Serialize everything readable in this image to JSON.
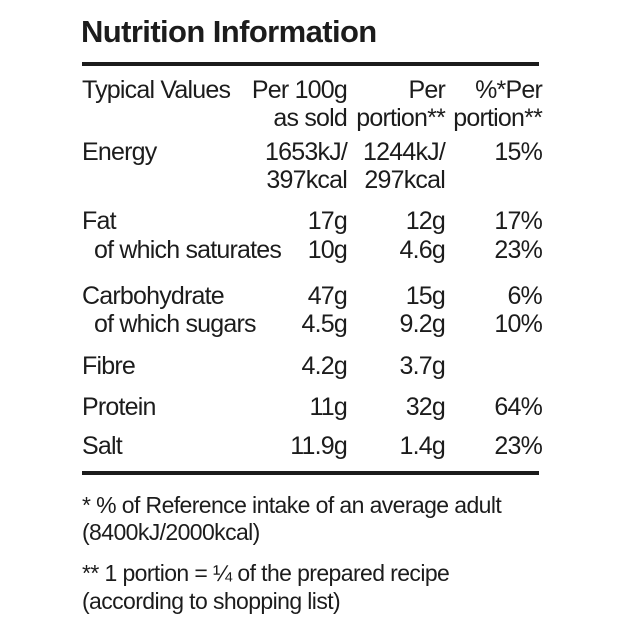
{
  "title": "Nutrition Information",
  "header": {
    "typical": "Typical Values",
    "col1": [
      "Per 100g",
      "as sold"
    ],
    "col2": [
      "Per",
      "portion**"
    ],
    "col3": [
      "%*Per",
      "portion**"
    ]
  },
  "rows": [
    {
      "label": "Energy",
      "per100": "1653kJ/",
      "portion": "1244kJ/",
      "ri": "15%"
    },
    {
      "label": "",
      "per100": "397kcal",
      "portion": "297kcal",
      "ri": ""
    },
    {
      "label": "Fat",
      "per100": "17g",
      "portion": "12g",
      "ri": "17%"
    },
    {
      "label": "of which saturates",
      "per100": "10g",
      "portion": "4.6g",
      "ri": "23%"
    },
    {
      "label": "Carbohydrate",
      "per100": "47g",
      "portion": "15g",
      "ri": "6%"
    },
    {
      "label": "of which sugars",
      "per100": "4.5g",
      "portion": "9.2g",
      "ri": "10%"
    },
    {
      "label": "Fibre",
      "per100": "4.2g",
      "portion": "3.7g",
      "ri": ""
    },
    {
      "label": "Protein",
      "per100": "11g",
      "portion": "32g",
      "ri": "64%"
    },
    {
      "label": "Salt",
      "per100": "11.9g",
      "portion": "1.4g",
      "ri": "23%"
    }
  ],
  "footnotes": [
    "*  % of Reference intake of an average adult",
    " (8400kJ/2000kcal)",
    "** 1 portion = ¼ of the prepared recipe",
    " (according to shopping list)"
  ]
}
